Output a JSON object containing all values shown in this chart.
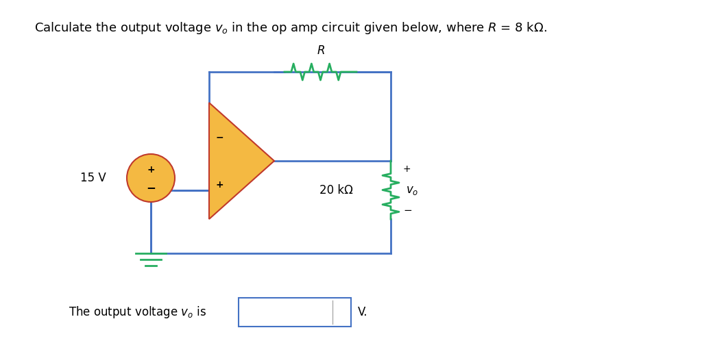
{
  "title": "Calculate the output voltage $v_o$ in the op amp circuit given below, where $R$ = 8 kΩ.",
  "bottom_text": "The output voltage $v_o$ is",
  "bottom_unit": "V.",
  "bg_color": "#ffffff",
  "wire_color": "#4472c4",
  "wire_linewidth": 2.0,
  "opamp_fill": "#f4b942",
  "opamp_outline": "#c0392b",
  "resistor_color": "#27ae60",
  "source_fill": "#f4b942",
  "source_outline": "#c0392b",
  "ground_color": "#27ae60",
  "text_color": "#000000",
  "title_fontsize": 13,
  "label_fontsize": 12,
  "annotation_fontsize": 11
}
